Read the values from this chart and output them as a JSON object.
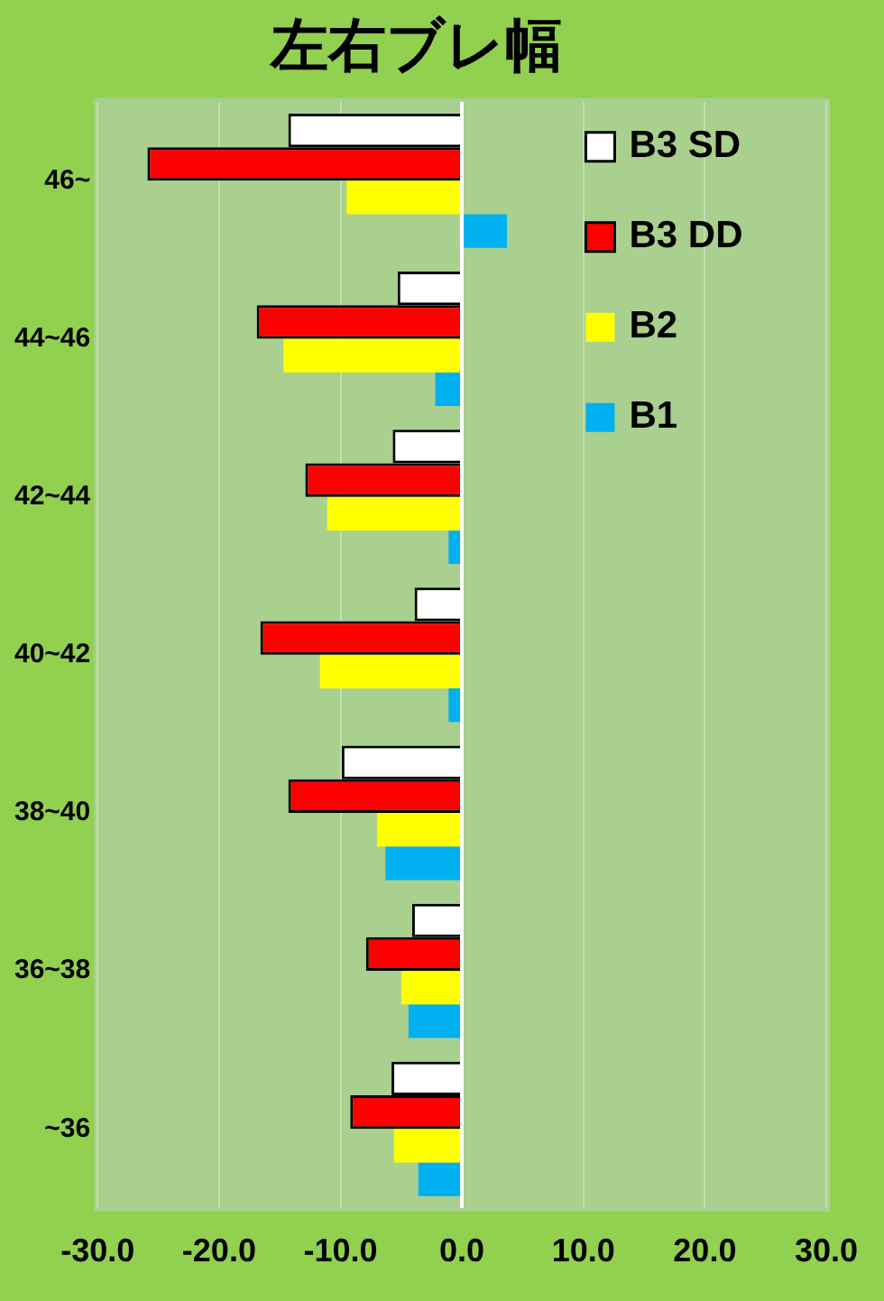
{
  "chart_data": {
    "type": "bar",
    "orientation": "horizontal",
    "title": "左右ブレ幅",
    "categories": [
      "46~",
      "44~46",
      "42~44",
      "40~42",
      "38~40",
      "36~38",
      "~36"
    ],
    "series": [
      {
        "name": "B3 SD",
        "color": "#ffffff",
        "values": [
          -14.3,
          -5.3,
          -5.7,
          -3.9,
          -9.9,
          -4.1,
          -5.8
        ]
      },
      {
        "name": "B3 DD",
        "color": "#ff0000",
        "values": [
          -25.9,
          -16.9,
          -12.9,
          -16.6,
          -14.3,
          -7.9,
          -9.2
        ]
      },
      {
        "name": "B2",
        "color": "#ffff00",
        "values": [
          -9.5,
          -14.7,
          -11.1,
          -11.7,
          -7.0,
          -5.0,
          -5.6
        ]
      },
      {
        "name": "B1",
        "color": "#00b0f0",
        "values": [
          3.7,
          -2.2,
          -1.1,
          -1.1,
          -6.3,
          -4.4,
          -3.6
        ]
      }
    ],
    "xlim": [
      -30,
      30
    ],
    "xticks": [
      {
        "value": -30,
        "label": "-30.0"
      },
      {
        "value": -20,
        "label": "-20.0"
      },
      {
        "value": -10,
        "label": "-10.0"
      },
      {
        "value": 0,
        "label": "0.0"
      },
      {
        "value": 10,
        "label": "10.0"
      },
      {
        "value": 20,
        "label": "20.0"
      },
      {
        "value": 30,
        "label": "30.0"
      }
    ],
    "grid": "x",
    "legend": "top right"
  }
}
